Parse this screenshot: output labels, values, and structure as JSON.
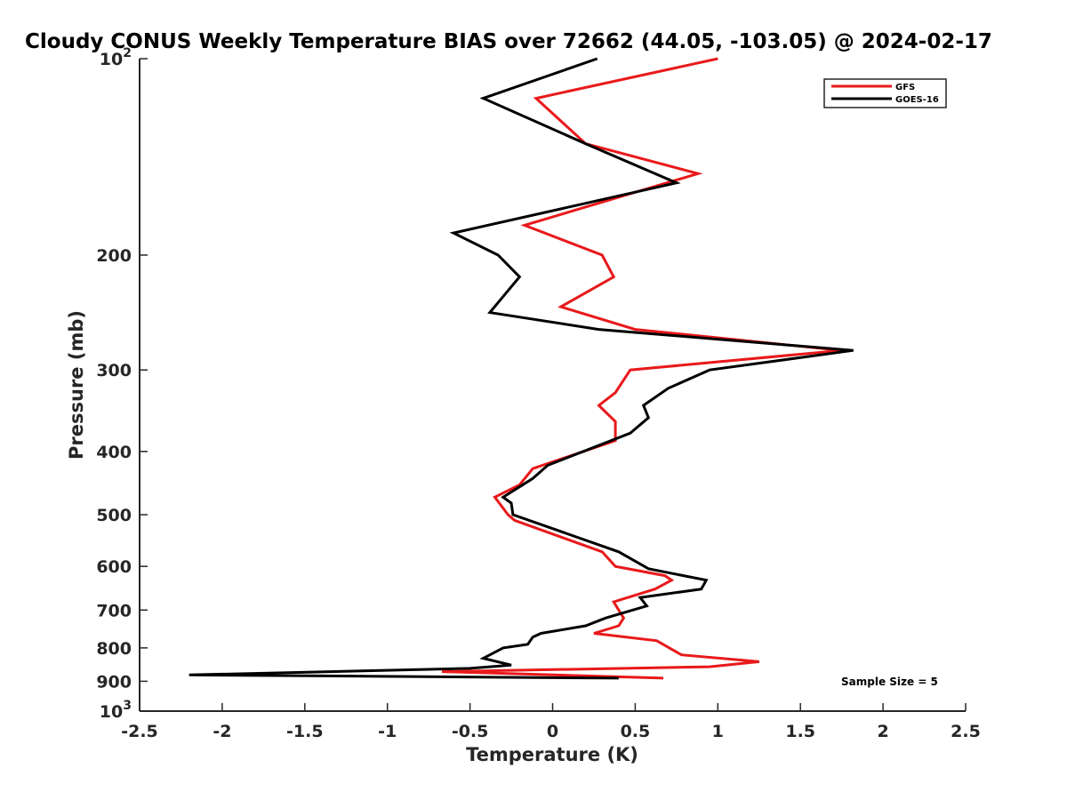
{
  "chart_data": {
    "type": "line",
    "title": "Cloudy CONUS Weekly Temperature BIAS over 72662 (44.05, -103.05) @ 2024-02-17",
    "xlabel": "Temperature (K)",
    "ylabel": "Pressure (mb)",
    "xlim": [
      -2.5,
      2.5
    ],
    "ylim": [
      100,
      1000
    ],
    "y_scale": "log",
    "y_reversed": true,
    "grid": false,
    "legend_position": "top-right",
    "x_ticks": [
      "-2.5",
      "-2",
      "-1.5",
      "-1",
      "-0.5",
      "0",
      "0.5",
      "1",
      "1.5",
      "2",
      "2.5"
    ],
    "y_ticks": [
      {
        "value": 100,
        "base": "10",
        "exp": "2"
      },
      {
        "value": 200,
        "label": "200"
      },
      {
        "value": 300,
        "label": "300"
      },
      {
        "value": 400,
        "label": "400"
      },
      {
        "value": 500,
        "label": "500"
      },
      {
        "value": 600,
        "label": "600"
      },
      {
        "value": 700,
        "label": "700"
      },
      {
        "value": 800,
        "label": "800"
      },
      {
        "value": 900,
        "label": "900"
      },
      {
        "value": 1000,
        "base": "10",
        "exp": "3"
      }
    ],
    "series": [
      {
        "name": "GFS",
        "color": "#e8191b",
        "points": [
          [
            1.0,
            100
          ],
          [
            -0.1,
            115
          ],
          [
            0.2,
            135
          ],
          [
            0.88,
            150
          ],
          [
            -0.17,
            180
          ],
          [
            0.3,
            200
          ],
          [
            0.37,
            216
          ],
          [
            0.05,
            240
          ],
          [
            0.5,
            260
          ],
          [
            1.75,
            280
          ],
          [
            0.47,
            300
          ],
          [
            0.38,
            325
          ],
          [
            0.28,
            340
          ],
          [
            0.38,
            360
          ],
          [
            0.38,
            385
          ],
          [
            -0.12,
            425
          ],
          [
            -0.2,
            450
          ],
          [
            -0.35,
            470
          ],
          [
            -0.27,
            500
          ],
          [
            -0.23,
            510
          ],
          [
            0.3,
            570
          ],
          [
            0.38,
            600
          ],
          [
            0.68,
            620
          ],
          [
            0.72,
            630
          ],
          [
            0.62,
            650
          ],
          [
            0.37,
            680
          ],
          [
            0.43,
            720
          ],
          [
            0.4,
            740
          ],
          [
            0.25,
            760
          ],
          [
            0.63,
            780
          ],
          [
            0.78,
            820
          ],
          [
            1.25,
            840
          ],
          [
            0.95,
            855
          ],
          [
            -0.67,
            870
          ],
          [
            0.67,
            890
          ]
        ]
      },
      {
        "name": "GOES-16",
        "color": "#000000",
        "points": [
          [
            0.27,
            100
          ],
          [
            -0.42,
            115
          ],
          [
            0.2,
            135
          ],
          [
            0.75,
            155
          ],
          [
            -0.6,
            185
          ],
          [
            -0.33,
            200
          ],
          [
            -0.2,
            216
          ],
          [
            -0.38,
            245
          ],
          [
            0.28,
            260
          ],
          [
            1.82,
            280
          ],
          [
            0.95,
            300
          ],
          [
            0.7,
            320
          ],
          [
            0.55,
            340
          ],
          [
            0.58,
            355
          ],
          [
            0.47,
            375
          ],
          [
            -0.03,
            420
          ],
          [
            -0.12,
            440
          ],
          [
            -0.3,
            470
          ],
          [
            -0.25,
            480
          ],
          [
            -0.24,
            500
          ],
          [
            0.4,
            570
          ],
          [
            0.58,
            605
          ],
          [
            0.93,
            630
          ],
          [
            0.9,
            650
          ],
          [
            0.53,
            670
          ],
          [
            0.57,
            690
          ],
          [
            0.32,
            720
          ],
          [
            0.2,
            740
          ],
          [
            -0.07,
            760
          ],
          [
            -0.12,
            770
          ],
          [
            -0.15,
            790
          ],
          [
            -0.3,
            800
          ],
          [
            -0.42,
            830
          ],
          [
            -0.25,
            850
          ],
          [
            -0.5,
            860
          ],
          [
            -2.2,
            880
          ],
          [
            0.4,
            890
          ]
        ]
      }
    ],
    "annotations": [
      {
        "text": "Sample Size = 5",
        "x": 2.0,
        "y": 890
      }
    ]
  }
}
